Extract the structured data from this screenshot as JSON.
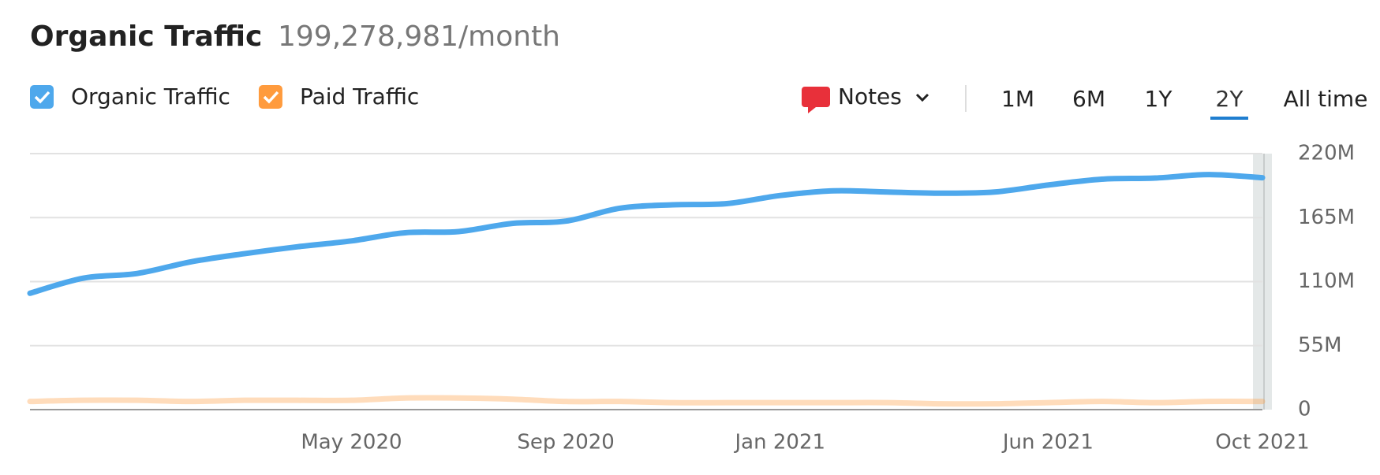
{
  "chart_data": {
    "type": "line",
    "title": "Organic Traffic",
    "subtitle": "199,278,981/month",
    "categories": [
      null,
      null,
      null,
      null,
      null,
      null,
      "May 2020",
      null,
      null,
      null,
      "Sep 2020",
      null,
      null,
      null,
      "Jan 2021",
      null,
      null,
      null,
      null,
      "Jun 2021",
      null,
      null,
      null,
      "Oct 2021"
    ],
    "series": [
      {
        "name": "Organic Traffic",
        "color": "#4ea8ec",
        "values": [
          100000000,
          113000000,
          117000000,
          127000000,
          134000000,
          140000000,
          145000000,
          152000000,
          153000000,
          160000000,
          162000000,
          173000000,
          176000000,
          177000000,
          184000000,
          188000000,
          187000000,
          186000000,
          187000000,
          193000000,
          198000000,
          199000000,
          202000000,
          199278981
        ]
      },
      {
        "name": "Paid Traffic",
        "color": "#ff9b3d",
        "values": [
          7000000,
          8000000,
          8000000,
          7000000,
          8000000,
          8000000,
          8000000,
          10000000,
          10000000,
          9000000,
          7000000,
          7000000,
          6000000,
          6000000,
          6000000,
          6000000,
          6000000,
          5000000,
          5000000,
          6000000,
          7000000,
          6000000,
          7000000,
          7000000
        ]
      }
    ],
    "ylim": [
      0,
      220000000
    ],
    "yticks": [
      {
        "value": 0,
        "label": "0"
      },
      {
        "value": 55000000,
        "label": "55M"
      },
      {
        "value": 110000000,
        "label": "110M"
      },
      {
        "value": 165000000,
        "label": "165M"
      },
      {
        "value": 220000000,
        "label": "220M"
      }
    ],
    "grid": true
  },
  "toolbar": {
    "notes": "Notes",
    "ranges": [
      "1M",
      "6M",
      "1Y",
      "2Y",
      "All time"
    ],
    "active": "2Y"
  }
}
